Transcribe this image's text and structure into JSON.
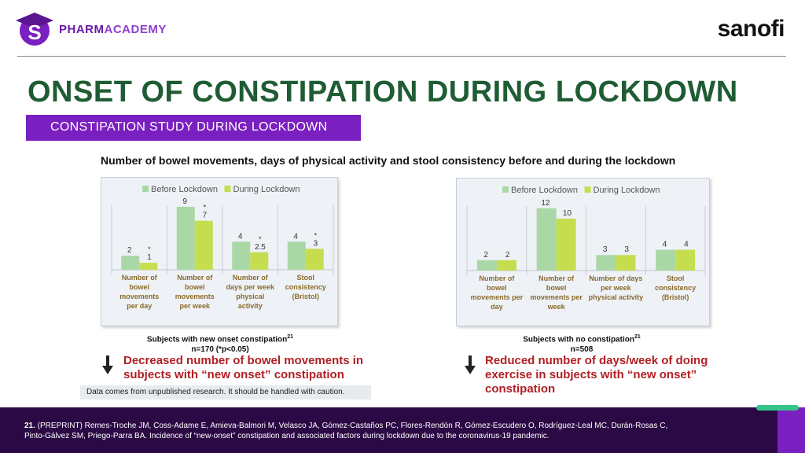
{
  "header": {
    "brand_left": "PHARMACADEMY",
    "brand_left_first": "PHARM",
    "brand_left_second": "ACADEMY",
    "badge_letter": "S",
    "brand_right": "sanofi"
  },
  "title": "ONSET OF CONSTIPATION DURING LOCKDOWN",
  "subtitle": "CONSTIPATION STUDY DURING LOCKDOWN",
  "chart_heading": "Number of bowel movements, days of physical activity and stool consistency before and during the lockdown",
  "chart_data": [
    {
      "type": "bar",
      "legend": [
        "Before Lockdown",
        "During Lockdown"
      ],
      "legend_position": "top",
      "categories": [
        [
          "Number of",
          "bowel",
          "movements",
          "per day"
        ],
        [
          "Number of",
          "bowel",
          "movements",
          "per week"
        ],
        [
          "Number of",
          "days per week",
          "physical",
          "activity"
        ],
        [
          "Stool",
          "consistency",
          "(Bristol)"
        ]
      ],
      "series": [
        {
          "name": "Before Lockdown",
          "values": [
            2,
            9,
            4,
            4
          ],
          "labels": [
            "2",
            "9",
            "4",
            "4"
          ]
        },
        {
          "name": "During Lockdown",
          "values": [
            1,
            7,
            2.5,
            3
          ],
          "labels": [
            "1",
            "7",
            "2.5",
            "3"
          ]
        }
      ],
      "significance_marker": "*",
      "significant": [
        true,
        true,
        true,
        true
      ],
      "ylim": [
        0,
        10
      ],
      "colors": {
        "before": "#a9d8a6",
        "during": "#c6dd4f"
      }
    },
    {
      "type": "bar",
      "legend": [
        "Before Lockdown",
        "During Lockdown"
      ],
      "legend_position": "top",
      "categories": [
        [
          "Number of",
          "bowel",
          "movements per",
          "day"
        ],
        [
          "Number of",
          "bowel",
          "movements per",
          "week"
        ],
        [
          "Number of days",
          "per week",
          "physical activity"
        ],
        [
          "Stool",
          "consistency",
          "(Bristol)"
        ]
      ],
      "series": [
        {
          "name": "Before Lockdown",
          "values": [
            2,
            12,
            3,
            4
          ],
          "labels": [
            "2",
            "12",
            "3",
            "4"
          ]
        },
        {
          "name": "During Lockdown",
          "values": [
            2,
            10,
            3,
            4
          ],
          "labels": [
            "2",
            "10",
            "3",
            "4"
          ]
        }
      ],
      "ylim": [
        0,
        13.5
      ],
      "colors": {
        "before": "#a9d8a6",
        "during": "#c6dd4f"
      }
    }
  ],
  "left_caption": {
    "line1": "Subjects with new onset constipation",
    "sup": "21",
    "line2": "n=170 (*p<0.05)"
  },
  "right_caption": {
    "line1": "Subjects with no constipation",
    "sup": "21",
    "line2": "n=508"
  },
  "left_finding": {
    "line1": "Decreased number of bowel movements in",
    "line2": "subjects with “new onset” constipation"
  },
  "right_finding": {
    "line1": "Reduced number of days/week of doing",
    "line2": "exercise in subjects with “new onset”",
    "line3": "constipation"
  },
  "note": "Data comes from unpublished research. It should be handled with caution.",
  "footer": {
    "ref_number": "21.",
    "ref_line1": " (PREPRINT) Remes-Troche JM, Coss-Adame E, Amieva-Balmori M, Velasco JA, Gómez-Castaños PC, Flores-Rendón R, Gómez-Escudero O, Rodríguez-Leal MC, Durán-Rosas C,",
    "ref_line2": "Pinto-Gálvez SM, Priego-Parra BA. Incidence of “new-onset” constipation and associated factors during lockdown due to the coronavirus-19 pandemic."
  },
  "colors": {
    "title": "#1f5c34",
    "accent": "#7a1fc0",
    "finding": "#b01f24",
    "footer": "#2b0944"
  }
}
